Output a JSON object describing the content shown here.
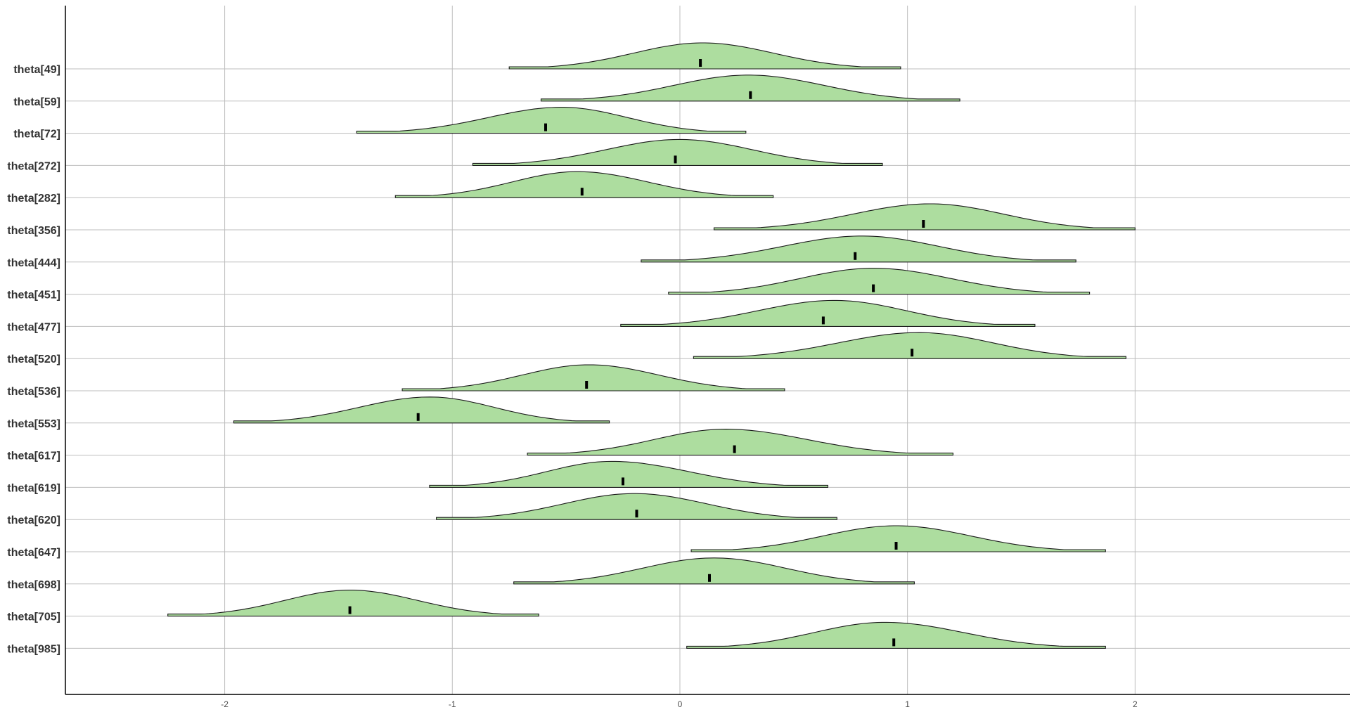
{
  "chart_data": {
    "type": "ridgeline",
    "title": "",
    "xlabel": "",
    "ylabel": "",
    "xlim": [
      -2.7,
      2.45
    ],
    "x_ticks": [
      -2,
      -1,
      0,
      1,
      2
    ],
    "x_tick_labels": [
      "-2",
      "-1",
      "0",
      "1",
      "2"
    ],
    "grid": true,
    "fill_color": "#addd9f",
    "outline_color": "#1a1a1a",
    "median_color": "#000000",
    "series": [
      {
        "label": "theta[49]",
        "min": -0.75,
        "max": 0.97,
        "mode": 0.1,
        "median": 0.09
      },
      {
        "label": "theta[59]",
        "min": -0.61,
        "max": 1.23,
        "mode": 0.3,
        "median": 0.31
      },
      {
        "label": "theta[72]",
        "min": -1.42,
        "max": 0.29,
        "mode": -0.52,
        "median": -0.59
      },
      {
        "label": "theta[272]",
        "min": -0.91,
        "max": 0.89,
        "mode": 0.0,
        "median": -0.02
      },
      {
        "label": "theta[282]",
        "min": -1.25,
        "max": 0.41,
        "mode": -0.45,
        "median": -0.43
      },
      {
        "label": "theta[356]",
        "min": 0.15,
        "max": 2.0,
        "mode": 1.1,
        "median": 1.07
      },
      {
        "label": "theta[444]",
        "min": -0.17,
        "max": 1.74,
        "mode": 0.8,
        "median": 0.77
      },
      {
        "label": "theta[451]",
        "min": -0.05,
        "max": 1.8,
        "mode": 0.85,
        "median": 0.85
      },
      {
        "label": "theta[477]",
        "min": -0.26,
        "max": 1.56,
        "mode": 0.68,
        "median": 0.63
      },
      {
        "label": "theta[520]",
        "min": 0.06,
        "max": 1.96,
        "mode": 1.05,
        "median": 1.02
      },
      {
        "label": "theta[536]",
        "min": -1.22,
        "max": 0.46,
        "mode": -0.4,
        "median": -0.41
      },
      {
        "label": "theta[553]",
        "min": -1.96,
        "max": -0.31,
        "mode": -1.1,
        "median": -1.15
      },
      {
        "label": "theta[617]",
        "min": -0.67,
        "max": 1.2,
        "mode": 0.2,
        "median": 0.24
      },
      {
        "label": "theta[619]",
        "min": -1.1,
        "max": 0.65,
        "mode": -0.3,
        "median": -0.25
      },
      {
        "label": "theta[620]",
        "min": -1.07,
        "max": 0.69,
        "mode": -0.2,
        "median": -0.19
      },
      {
        "label": "theta[647]",
        "min": 0.05,
        "max": 1.87,
        "mode": 0.95,
        "median": 0.95
      },
      {
        "label": "theta[698]",
        "min": -0.73,
        "max": 1.03,
        "mode": 0.15,
        "median": 0.13
      },
      {
        "label": "theta[705]",
        "min": -2.25,
        "max": -0.62,
        "mode": -1.45,
        "median": -1.45
      },
      {
        "label": "theta[985]",
        "min": 0.03,
        "max": 1.87,
        "mode": 0.9,
        "median": 0.94
      }
    ]
  }
}
